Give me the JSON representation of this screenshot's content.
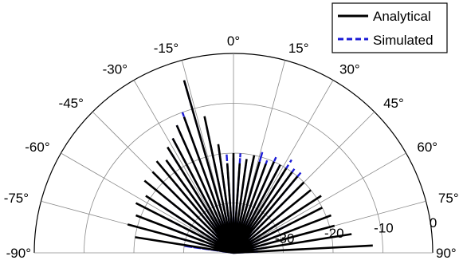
{
  "chart_data": {
    "type": "polar-half",
    "legend_position": "top-right",
    "grid": true,
    "angle_ticks": [
      "-90°",
      "-75°",
      "-60°",
      "-45°",
      "-30°",
      "-15°",
      "0°",
      "15°",
      "30°",
      "45°",
      "60°",
      "75°",
      "90°"
    ],
    "angle_values_deg": [
      -90,
      -75,
      -60,
      -45,
      -30,
      -15,
      0,
      15,
      30,
      45,
      60,
      75,
      90
    ],
    "radial_ticks": [
      "-30",
      "-20",
      "-10",
      "0"
    ],
    "radial_values_db": [
      -30,
      -20,
      -10,
      0
    ],
    "rlim_db": [
      -40,
      0
    ],
    "legend": [
      "Analytical",
      "Simulated"
    ],
    "colors": {
      "analytical": "#000000",
      "simulated": "#1b1bd6",
      "grid": "#8a8a8a"
    },
    "series": [
      {
        "name": "Analytical",
        "style": "solid",
        "angles_deg": [
          -90,
          -84,
          -81,
          -78,
          -75,
          -72,
          -69,
          -66,
          -63,
          -60,
          -57,
          -54,
          -51,
          -48,
          -45,
          -42,
          -40,
          -38,
          -36,
          -34,
          -32,
          -30,
          -28,
          -26,
          -24,
          -22,
          -20,
          -18,
          -16,
          -14,
          -12,
          -10,
          -8,
          -6,
          -4,
          -2,
          0,
          2,
          4,
          6,
          8,
          10,
          12,
          14,
          16,
          18,
          20,
          22,
          24,
          26,
          28,
          30,
          32,
          34,
          36,
          38,
          40,
          42,
          45,
          48,
          51,
          54,
          57,
          60,
          63,
          66,
          69,
          72,
          75,
          78,
          81,
          84,
          87,
          90
        ],
        "values_db": [
          -40,
          -40,
          -20,
          -40,
          -18,
          -40,
          -19,
          -40,
          -18,
          -40,
          -19,
          -40,
          -17,
          -40,
          -17,
          -40,
          -16,
          -40,
          -17,
          -40,
          -15,
          -40,
          -14,
          -40,
          -12,
          -40,
          -11,
          -40,
          -4,
          -40,
          -12,
          -40,
          -18,
          -40,
          -22,
          -40,
          -20,
          -40,
          -22,
          -40,
          -21,
          -40,
          -20,
          -40,
          -21,
          -40,
          -21,
          -40,
          -20,
          -40,
          -20,
          -40,
          -20,
          -40,
          -20,
          -40,
          -20,
          -40,
          -20,
          -40,
          -20,
          -40,
          -19,
          -40,
          -20,
          -40,
          -19,
          -40,
          -19,
          -40,
          -16,
          -40,
          -12,
          -40
        ]
      },
      {
        "name": "Simulated",
        "style": "dashed",
        "angles_deg": [
          -90,
          -86,
          -82,
          -78,
          -75,
          -72,
          -69,
          -66,
          -63,
          -60,
          -57,
          -54,
          -51,
          -48,
          -45,
          -42,
          -40,
          -38,
          -36,
          -34,
          -32,
          -30,
          -28,
          -26,
          -24,
          -22,
          -20,
          -18,
          -16,
          -14,
          -12,
          -10,
          -8,
          -6,
          -4,
          -2,
          0,
          2,
          4,
          6,
          8,
          10,
          12,
          14,
          16,
          18,
          20,
          22,
          24,
          26,
          28,
          30,
          32,
          34,
          36,
          38,
          40,
          42,
          45,
          48,
          51,
          54,
          57,
          60,
          63,
          66,
          69,
          72,
          75,
          78,
          81,
          84,
          87,
          90
        ],
        "values_db": [
          -40,
          -40,
          -30,
          -40,
          -26,
          -40,
          -26,
          -40,
          -24,
          -40,
          -22,
          -40,
          -22,
          -40,
          -20,
          -40,
          -22,
          -40,
          -18,
          -40,
          -16,
          -40,
          -14,
          -40,
          -12,
          -40,
          -10,
          -40,
          -4,
          -40,
          -14,
          -40,
          -19,
          -40,
          -20,
          -40,
          -21,
          -40,
          -20,
          -40,
          -22,
          -40,
          -21,
          -40,
          -19,
          -40,
          -20,
          -40,
          -19,
          -40,
          -20,
          -40,
          -18,
          -40,
          -19,
          -40,
          -19,
          -40,
          -22,
          -40,
          -26,
          -40,
          -27,
          -40,
          -28,
          -40,
          -30,
          -40,
          -31,
          -40,
          -33,
          -40,
          -35,
          -40
        ]
      }
    ]
  }
}
